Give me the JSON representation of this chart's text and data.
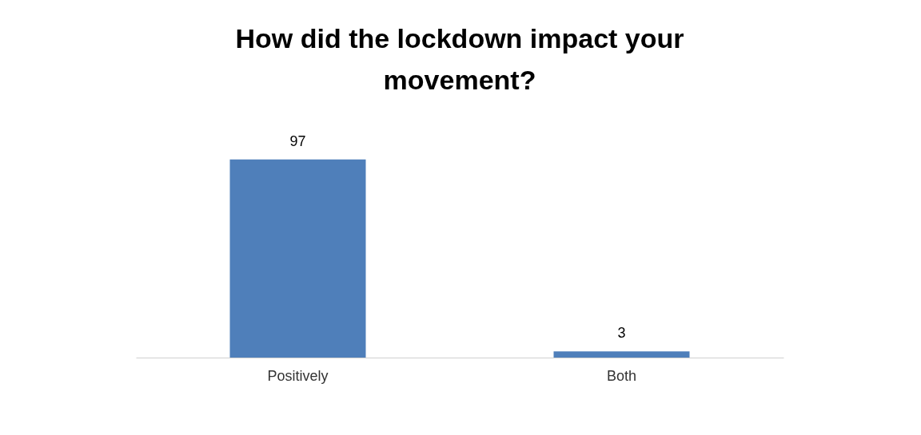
{
  "chart_data": {
    "type": "bar",
    "title": "How did the lockdown impact your movement?",
    "categories": [
      "Positively",
      "Both"
    ],
    "values": [
      97,
      3
    ],
    "color": "#4f7fba",
    "data_labels": true
  }
}
